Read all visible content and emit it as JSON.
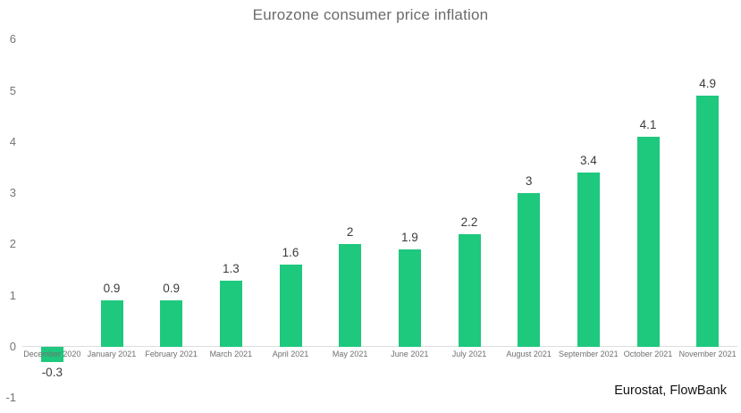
{
  "chart_data": {
    "type": "bar",
    "title": "Eurozone consumer price inflation",
    "source": "Eurostat, FlowBank",
    "categories": [
      "December 2020",
      "January 2021",
      "February 2021",
      "March 2021",
      "April 2021",
      "May 2021",
      "June 2021",
      "July 2021",
      "August 2021",
      "September 2021",
      "October 2021",
      "November 2021"
    ],
    "values": [
      -0.3,
      0.9,
      0.9,
      1.3,
      1.6,
      2,
      1.9,
      2.2,
      3,
      3.4,
      4.1,
      4.9
    ],
    "value_labels": [
      "-0.3",
      "0.9",
      "0.9",
      "1.3",
      "1.6",
      "2",
      "1.9",
      "2.2",
      "3",
      "3.4",
      "4.1",
      "4.9"
    ],
    "yticks": [
      6,
      5,
      4,
      3,
      2,
      1,
      0,
      -1
    ],
    "ylim": [
      -1,
      6
    ],
    "xlabel": "",
    "ylabel": "",
    "grid": false,
    "legend": "none",
    "colors": {
      "bar": "#1EC87D",
      "title_text": "#6B6B6B",
      "axis_tick_text": "#757575",
      "category_text": "#6F6F6F",
      "value_text": "#3C3C3C",
      "axis_line": "#DEDEDE"
    }
  }
}
